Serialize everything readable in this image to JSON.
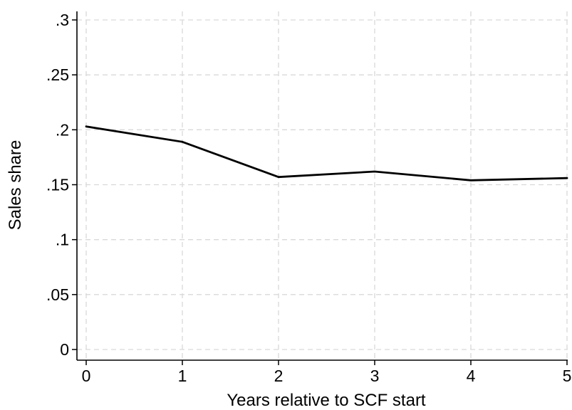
{
  "chart_data": {
    "type": "line",
    "title": "",
    "xlabel": "Years relative to SCF start",
    "ylabel": "Sales share",
    "x": [
      0,
      1,
      2,
      3,
      4,
      5
    ],
    "series": [
      {
        "values": [
          0.203,
          0.189,
          0.157,
          0.162,
          0.154,
          0.156
        ],
        "color": "#000000"
      }
    ],
    "xlim": [
      0,
      5
    ],
    "ylim": [
      0,
      0.3
    ],
    "xticks": [
      0,
      1,
      2,
      3,
      4,
      5
    ],
    "xtick_labels": [
      "0",
      "1",
      "2",
      "3",
      "4",
      "5"
    ],
    "yticks": [
      0,
      0.05,
      0.1,
      0.15,
      0.2,
      0.25,
      0.3
    ],
    "ytick_labels": [
      "0",
      ".05",
      ".1",
      ".15",
      ".2",
      ".25",
      ".3"
    ],
    "grid": true,
    "grid_style": "dashed",
    "grid_color": "#d9d9d9",
    "legend": "none"
  }
}
